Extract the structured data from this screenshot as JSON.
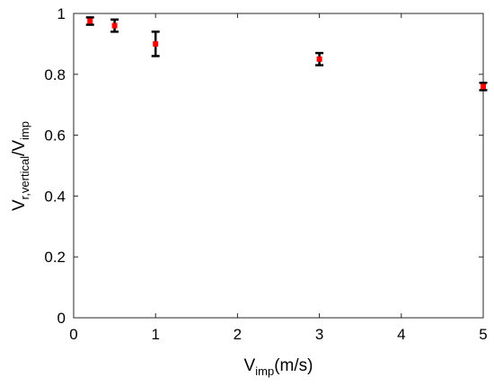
{
  "chart_data": {
    "type": "scatter",
    "title": "",
    "xlabel": {
      "main": "V",
      "sub": "imp",
      "rest": "(m/s)"
    },
    "ylabel": {
      "main1": "V",
      "sub1": "r,vertical",
      "main2": "/V",
      "sub2": "imp"
    },
    "xlim": [
      0,
      5
    ],
    "ylim": [
      0,
      1
    ],
    "xticks": [
      "0",
      "1",
      "2",
      "3",
      "4",
      "5"
    ],
    "yticks": [
      "0",
      "0.2",
      "0.4",
      "0.6",
      "0.8",
      "1"
    ],
    "grid": false,
    "marker_color": "#ff0000",
    "errorbar_color": "#000000",
    "series": [
      {
        "x": [
          0.2,
          0.5,
          1,
          3,
          5
        ],
        "y": [
          0.975,
          0.96,
          0.9,
          0.85,
          0.76
        ],
        "error": [
          0.012,
          0.02,
          0.04,
          0.02,
          0.012
        ]
      }
    ]
  }
}
